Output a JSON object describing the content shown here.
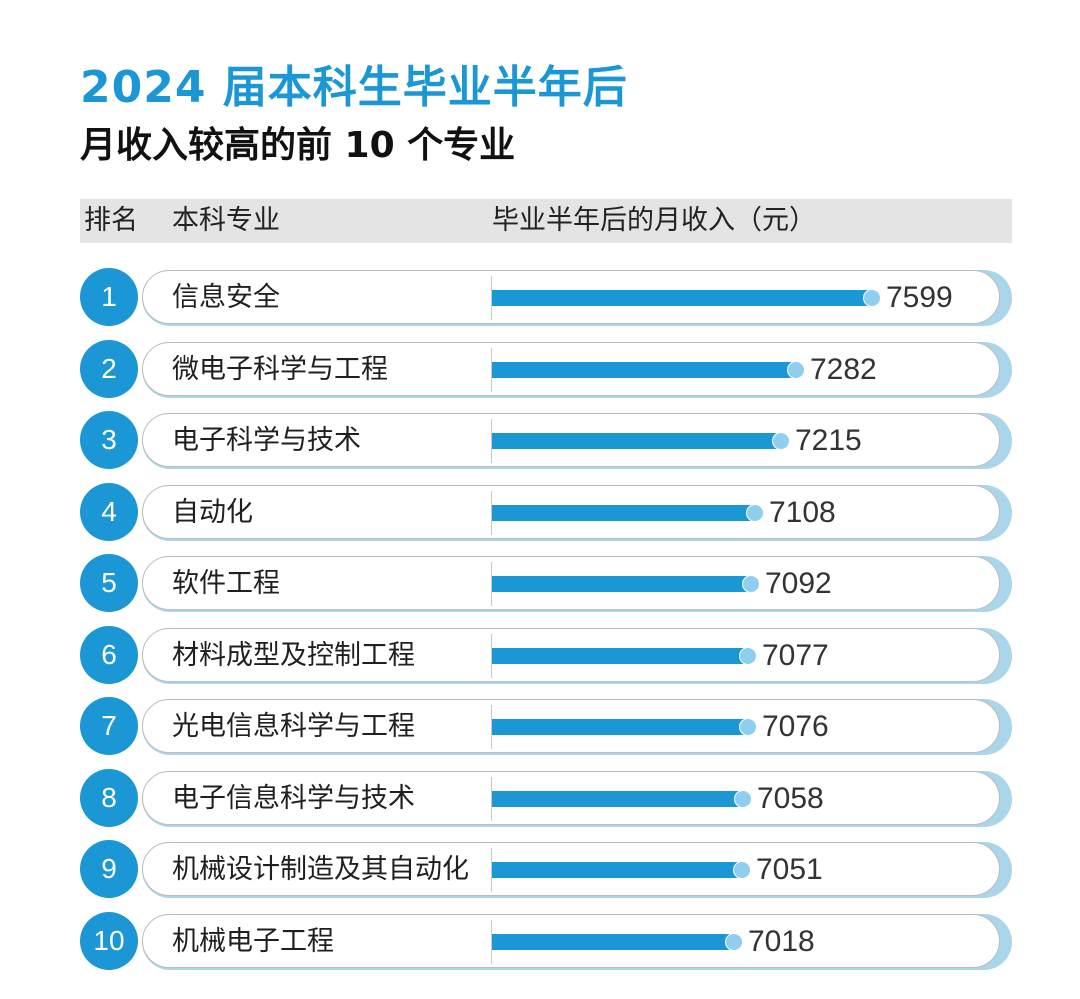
{
  "chart_data": {
    "type": "bar",
    "title": "2024 届本科生毕业半年后",
    "subtitle": "月收入较高的前 10 个专业",
    "columns": {
      "rank": "排名",
      "major": "本科专业",
      "income": "毕业半年后的月收入（元）"
    },
    "ranks": [
      "1",
      "2",
      "3",
      "4",
      "5",
      "6",
      "7",
      "8",
      "9",
      "10"
    ],
    "categories": [
      "信息安全",
      "微电子科学与工程",
      "电子科学与技术",
      "自动化",
      "软件工程",
      "材料成型及控制工程",
      "光电信息科学与工程",
      "电子信息科学与技术",
      "机械设计制造及其自动化",
      "机械电子工程"
    ],
    "values": [
      7599,
      7282,
      7215,
      7108,
      7092,
      7077,
      7076,
      7058,
      7051,
      7018
    ],
    "value_labels": [
      "7599",
      "7282",
      "7215",
      "7108",
      "7092",
      "7077",
      "7076",
      "7058",
      "7051",
      "7018"
    ]
  },
  "colors": {
    "accent": "#1a97d4",
    "bar": "#1a97d4",
    "bar_dot": "#8ecff0",
    "header_bg": "#e4e4e4"
  }
}
